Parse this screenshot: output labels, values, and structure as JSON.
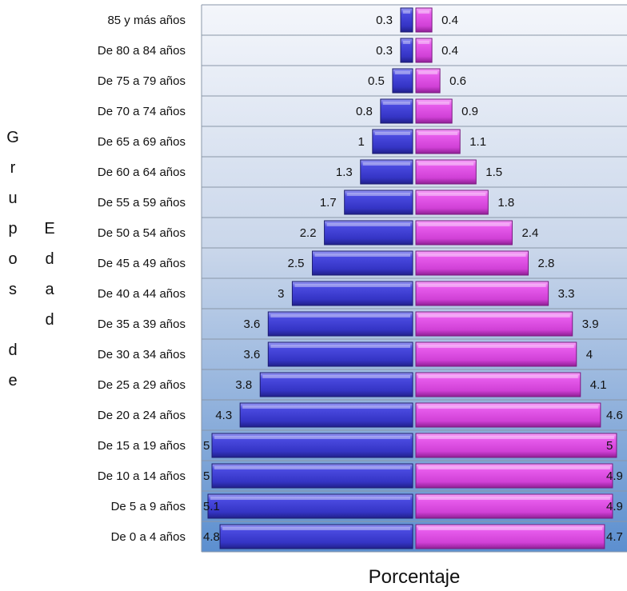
{
  "chart_data": {
    "type": "bar",
    "orientation": "horizontal",
    "variant": "population-pyramid",
    "categories": [
      "85 y más años",
      "De 80 a 84 años",
      "De 75 a 79 años",
      "De 70 a 74 años",
      "De 65 a 69 años",
      "De 60 a 64 años",
      "De 55 a 59 años",
      "De 50 a 54 años",
      "De 45 a 49 años",
      "De 40 a 44 años",
      "De 35 a 39 años",
      "De 30 a 34 años",
      "De 25 a 29 años",
      "De 20 a 24 años",
      "De 15 a 19 años",
      "De 10 a 14 años",
      "De 5 a 9 años",
      "De 0 a 4 años"
    ],
    "series": [
      {
        "side": "left",
        "color": "#3f3fd6",
        "values": [
          0.3,
          0.3,
          0.5,
          0.8,
          1,
          1.3,
          1.7,
          2.2,
          2.5,
          3,
          3.6,
          3.6,
          3.8,
          4.3,
          5,
          5,
          5.1,
          4.8
        ],
        "value_labels": [
          "0.3",
          "0.3",
          "0.5",
          "0.8",
          "1",
          "1.3",
          "1.7",
          "2.2",
          "2.5",
          "3",
          "3.6",
          "3.6",
          "3.8",
          "4.3",
          "5",
          "5",
          "5.1",
          "4.8"
        ]
      },
      {
        "side": "right",
        "color": "#e14ee6",
        "values": [
          0.4,
          0.4,
          0.6,
          0.9,
          1.1,
          1.5,
          1.8,
          2.4,
          2.8,
          3.3,
          3.9,
          4,
          4.1,
          4.6,
          5,
          4.9,
          4.9,
          4.7
        ],
        "value_labels": [
          "0.4",
          "0.4",
          "0.6",
          "0.9",
          "1.1",
          "1.5",
          "1.8",
          "2.4",
          "2.8",
          "3.3",
          "3.9",
          "4",
          "4.1",
          "4.6",
          "5",
          "4.9",
          "4.9",
          "4.7"
        ]
      }
    ],
    "xlabel": "Porcentaje",
    "ylabel": "Grupos de Edad",
    "ylabel_columns": [
      "Grupos de",
      "Edad"
    ],
    "xlim": [
      -5.3,
      5.3
    ],
    "grid": true,
    "legend": "none",
    "background_gradient": [
      "#f4f6fb",
      "#5c8fcf"
    ]
  }
}
